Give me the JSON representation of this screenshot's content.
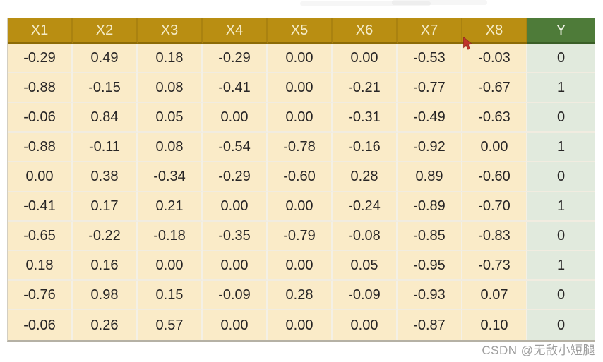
{
  "chart_data": {
    "type": "table",
    "title": "",
    "columns": [
      "X1",
      "X2",
      "X3",
      "X4",
      "X5",
      "X6",
      "X7",
      "X8",
      "Y"
    ],
    "rows": [
      [
        "-0.29",
        "0.49",
        "0.18",
        "-0.29",
        "0.00",
        "0.00",
        "-0.53",
        "-0.03",
        "0"
      ],
      [
        "-0.88",
        "-0.15",
        "0.08",
        "-0.41",
        "0.00",
        "-0.21",
        "-0.77",
        "-0.67",
        "1"
      ],
      [
        "-0.06",
        "0.84",
        "0.05",
        "0.00",
        "0.00",
        "-0.31",
        "-0.49",
        "-0.63",
        "0"
      ],
      [
        "-0.88",
        "-0.11",
        "0.08",
        "-0.54",
        "-0.78",
        "-0.16",
        "-0.92",
        "0.00",
        "1"
      ],
      [
        "0.00",
        "0.38",
        "-0.34",
        "-0.29",
        "-0.60",
        "0.28",
        "0.89",
        "-0.60",
        "0"
      ],
      [
        "-0.41",
        "0.17",
        "0.21",
        "0.00",
        "0.00",
        "-0.24",
        "-0.89",
        "-0.70",
        "1"
      ],
      [
        "-0.65",
        "-0.22",
        "-0.18",
        "-0.35",
        "-0.79",
        "-0.08",
        "-0.85",
        "-0.83",
        "0"
      ],
      [
        "0.18",
        "0.16",
        "0.00",
        "0.00",
        "0.00",
        "0.05",
        "-0.95",
        "-0.73",
        "1"
      ],
      [
        "-0.76",
        "0.98",
        "0.15",
        "-0.09",
        "0.28",
        "-0.09",
        "-0.93",
        "0.07",
        "0"
      ],
      [
        "-0.06",
        "0.26",
        "0.57",
        "0.00",
        "0.00",
        "0.00",
        "-0.87",
        "0.10",
        "0"
      ]
    ],
    "layout": {
      "header_color": "#b98e12",
      "header_y_color": "#4e7b39",
      "cell_color": "#faebc8",
      "cell_y_color": "#e1eadd",
      "header_text_color": "#f5ecc8",
      "cell_text_color": "#272525"
    }
  },
  "cursor": {
    "name": "red-pointer",
    "color": "#c0342b"
  },
  "watermark": {
    "text": "CSDN @无敌小短腿"
  }
}
